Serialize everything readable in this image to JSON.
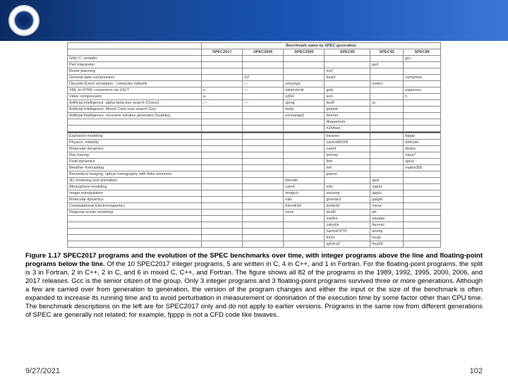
{
  "table": {
    "super_header": "Benchmark name by SPEC generation",
    "col_headers": [
      "",
      "SPEC2017",
      "SPEC2006",
      "SPEC2000",
      "SPEC95",
      "SPEC92",
      "SPEC89"
    ],
    "integer_rows": [
      [
        "GNU C compiler",
        "",
        "",
        "",
        "",
        "",
        "gcc"
      ],
      [
        "Perl interpreter",
        "",
        "",
        "",
        "",
        "perl",
        ""
      ],
      [
        "Route planning",
        "",
        "",
        "",
        "mcf",
        "",
        ""
      ],
      [
        "General data compression",
        "",
        "XZ",
        "",
        "bzip2",
        "",
        "compress"
      ],
      [
        "Discrete Event simulation - computer network",
        "",
        "—",
        "omnetpp",
        "",
        "vortex",
        ""
      ],
      [
        "XML to HTML conversion via XSLT",
        "x",
        "—",
        "xalancbmk",
        "gzip",
        "",
        "espresso"
      ],
      [
        "Video compression",
        "a",
        "",
        "x264",
        "eon",
        "",
        "li"
      ],
      [
        "Artificial Intelligence: alpha-beta tree search (Chess)",
        "—",
        "—",
        "sjeng",
        "twolf",
        "sc",
        ""
      ],
      [
        "Artificial Intelligence: Monte Carlo tree search (Go)",
        "",
        "",
        "leela",
        "gobmk",
        "",
        ""
      ],
      [
        "Artificial Intelligence: recursive solution generator (Sudoku)",
        "",
        "",
        "exchange2",
        "hmmer",
        "",
        ""
      ]
    ],
    "integer_tail": [
      [
        "",
        "",
        "",
        "",
        "libquantum",
        "",
        ""
      ],
      [
        "",
        "",
        "",
        "",
        "h264avc",
        "",
        ""
      ]
    ],
    "float_rows": [
      [
        "Explosion modeling",
        "",
        "",
        "",
        "bwaves",
        "",
        "fpppp"
      ],
      [
        "Physics: relativity",
        "",
        "",
        "",
        "cactusBSSN",
        "",
        "tomcatv"
      ],
      [
        "Molecular dynamics",
        "",
        "",
        "",
        "namd",
        "",
        "doduc"
      ],
      [
        "Ray tracing",
        "",
        "",
        "",
        "povray",
        "",
        "nasa7"
      ],
      [
        "Fluid dynamics",
        "",
        "",
        "",
        "lbm",
        "",
        "spice"
      ],
      [
        "Weather forecasting",
        "",
        "",
        "",
        "wrf",
        "",
        "matrix300"
      ],
      [
        "Biomedical imaging: optical tomography with finite elements",
        "",
        "",
        "",
        "parest",
        "",
        ""
      ],
      [
        "3D rendering and animation",
        "",
        "",
        "blender",
        "",
        "apsi",
        ""
      ],
      [
        "Atmosphere modeling",
        "",
        "",
        "cam4",
        "milc",
        "mgrid",
        ""
      ],
      [
        "Image manipulation",
        "",
        "",
        "imagick",
        "zeusmp",
        "applu",
        ""
      ],
      [
        "Molecular dynamics",
        "",
        "",
        "nab",
        "gromacs",
        "galgel",
        ""
      ],
      [
        "Computational Electromagnetics",
        "",
        "",
        "fotonik3d",
        "leslie3d",
        "mesa",
        ""
      ],
      [
        "Regional ocean modeling",
        "",
        "",
        "roms",
        "dealII",
        "art",
        ""
      ]
    ],
    "float_tail": [
      [
        "",
        "",
        "",
        "",
        "soplex",
        "equake",
        ""
      ],
      [
        "",
        "",
        "",
        "",
        "calculix",
        "facerec",
        ""
      ],
      [
        "",
        "",
        "",
        "",
        "GemsFDTD",
        "ammp",
        ""
      ],
      [
        "",
        "",
        "",
        "",
        "tonto",
        "lucas",
        ""
      ],
      [
        "",
        "",
        "",
        "",
        "sphinx3",
        "fma3d",
        ""
      ]
    ]
  },
  "caption": {
    "bold": "Figure 1.17 SPEC2017 programs and the evolution of the SPEC benchmarks over time, with integer programs above the line and floating-point programs below the line.",
    "rest": " Of the 10 SPEC2017 integer programs, 5 are written in C, 4 in C++, and 1 in Fortran. For the floating-point programs, the split is 3 in Fortran, 2 in C++, 2 in C, and 6 in mixed C, C++, and Fortran. The figure shows all 82 of the programs in the 1989, 1992, 1995, 2000, 2006, and 2017 releases. Gcc is the senior citizen of the group. Only 3 integer programs and 3 floating-point programs survived three or more generations. Although a few are carried over from generation to generation, the version of the program changes and either the input or the size of the benchmark is often expanded to increase its running time and to avoid perturbation in measurement or domination of the execution time by some factor other than CPU time. The benchmark descriptions on the left are for SPEC2017 only and do not apply to earlier versions. Programs in the same row from different generations of SPEC are generally not related; for example, fpppp is not a CFD code like bwaves."
  },
  "footer": {
    "date": "9/27/2021",
    "page": "102"
  },
  "colors": {
    "banner_start": "#0b2a63",
    "banner_end": "#3b78d6",
    "border": "#8a8a8a",
    "text": "#000000"
  }
}
